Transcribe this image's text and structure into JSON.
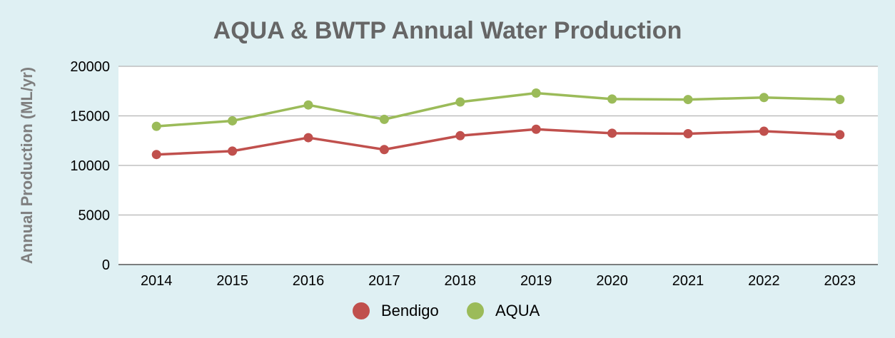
{
  "chart_data": {
    "type": "line",
    "title": "AQUA & BWTP  Annual Water Production",
    "xlabel": "",
    "ylabel": "Annual Production (ML/yr)",
    "categories": [
      "2014",
      "2015",
      "2016",
      "2017",
      "2018",
      "2019",
      "2020",
      "2021",
      "2022",
      "2023"
    ],
    "ylim": [
      0,
      20000
    ],
    "yticks": [
      0,
      5000,
      10000,
      15000,
      20000
    ],
    "grid": true,
    "legend": "bottom-center",
    "series": [
      {
        "name": "Bendigo",
        "color": "#c0504d",
        "values": [
          11100,
          11450,
          12800,
          11600,
          13000,
          13650,
          13250,
          13200,
          13450,
          13100
        ]
      },
      {
        "name": "AQUA",
        "color": "#9bbb59",
        "values": [
          13950,
          14500,
          16100,
          14650,
          16400,
          17300,
          16700,
          16650,
          16850,
          16650
        ]
      }
    ]
  }
}
